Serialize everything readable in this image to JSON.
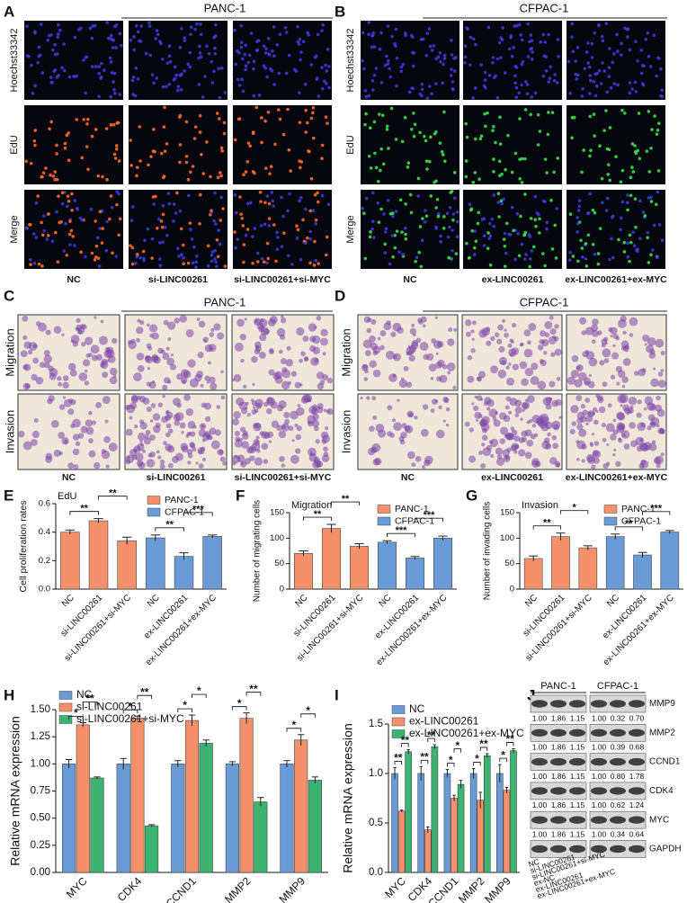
{
  "panels": [
    {
      "label": "A",
      "title": "PANC-1",
      "rows": [
        "Hoechst33342",
        "EdU",
        "Merge"
      ],
      "columns": [
        "NC",
        "si-LINC00261",
        "si-LINC00261+si-MYC"
      ],
      "colors": [
        "#06060e",
        "#3b3bd8",
        "#ff6a2a"
      ]
    },
    {
      "label": "B",
      "title": "CFPAC-1",
      "rows": [
        "Hoechst33342",
        "EdU",
        "Merge"
      ],
      "columns": [
        "NC",
        "ex-LINC00261",
        "ex-LINC00261+ex-MYC"
      ],
      "colors": [
        "#06060e",
        "#3b3bd8",
        "#3ce04a"
      ]
    },
    {
      "label": "C",
      "title": "PANC-1",
      "rows": [
        "Migration",
        "Invasion"
      ],
      "columns": [
        "NC",
        "si-LINC00261",
        "si-LINC00261+si-MYC"
      ],
      "colors": [
        "#efe7d9",
        "#7b44a8"
      ]
    },
    {
      "label": "D",
      "title": "CFPAC-1",
      "rows": [
        "Migration",
        "Invasion"
      ],
      "columns": [
        "NC",
        "ex-LINC00261",
        "ex-LINC00261+ex-MYC"
      ],
      "colors": [
        "#efe7d9",
        "#7b44a8"
      ]
    }
  ],
  "chart_data": [
    {
      "label": "E",
      "type": "bar",
      "title": "EdU",
      "y_label": "Cell proliferation rates",
      "categories": [
        "NC",
        "si-LINC00261",
        "si-LINC00261+si-MYC",
        "NC",
        "ex-LINC00261",
        "ex-LINC00261+ex-MYC"
      ],
      "series": [
        {
          "name": "PANC-1",
          "color": "#f4916c",
          "values": [
            0.4,
            0.48,
            0.34,
            null,
            null,
            null
          ],
          "errors": [
            0.015,
            0.015,
            0.025,
            null,
            null,
            null
          ]
        },
        {
          "name": "CFPAC-1",
          "color": "#6b9bd6",
          "values": [
            null,
            null,
            null,
            0.36,
            0.23,
            0.37
          ],
          "errors": [
            null,
            null,
            null,
            0.02,
            0.025,
            0.01
          ]
        }
      ],
      "ylim": [
        0,
        0.6
      ],
      "yticks": [
        {
          "value": 0,
          "label": "0.0"
        },
        0.2,
        0.4,
        0.6
      ],
      "legend": "upper right",
      "significance": [
        {
          "from": 0,
          "to": 1,
          "label": "**"
        },
        {
          "from": 1,
          "to": 2,
          "label": "**"
        },
        {
          "from": 3,
          "to": 4,
          "label": "**"
        },
        {
          "from": 4,
          "to": 5,
          "label": "***"
        }
      ]
    },
    {
      "label": "F",
      "type": "bar",
      "title": "Migration",
      "y_label": "Number of migrating cells",
      "categories": [
        "NC",
        "si-LINC00261",
        "si-LINC00261+si-MYC",
        "NC",
        "ex-LINC00261",
        "ex-LINC00261+ex-MYC"
      ],
      "series": [
        {
          "name": "PANC-1",
          "color": "#f4916c",
          "values": [
            70,
            119,
            84,
            null,
            null,
            null
          ],
          "errors": [
            5,
            8,
            5,
            null,
            null,
            null
          ]
        },
        {
          "name": "CFPAC-1",
          "color": "#6b9bd6",
          "values": [
            null,
            null,
            null,
            92,
            61,
            100
          ],
          "errors": [
            null,
            null,
            null,
            3,
            3,
            4
          ]
        }
      ],
      "ylim": [
        0,
        150
      ],
      "yticks": [
        0,
        50,
        100,
        150
      ],
      "legend": "upper right",
      "significance": [
        {
          "from": 0,
          "to": 1,
          "label": "**"
        },
        {
          "from": 1,
          "to": 2,
          "label": "**"
        },
        {
          "from": 3,
          "to": 4,
          "label": "***"
        },
        {
          "from": 4,
          "to": 5,
          "label": "***"
        }
      ]
    },
    {
      "label": "G",
      "type": "bar",
      "title": "Invasion",
      "y_label": "Number of invading cells",
      "categories": [
        "NC",
        "si-LINC00261",
        "si-LINC00261+si-MYC",
        "NC",
        "ex-LINC00261",
        "ex-LINC00261+ex-MYC"
      ],
      "series": [
        {
          "name": "PANC-1",
          "color": "#f4916c",
          "values": [
            60,
            103,
            81,
            null,
            null,
            null
          ],
          "errors": [
            5,
            7,
            4,
            null,
            null,
            null
          ]
        },
        {
          "name": "CFPAC-1",
          "color": "#6b9bd6",
          "values": [
            null,
            null,
            null,
            103,
            67,
            112
          ],
          "errors": [
            null,
            null,
            null,
            5,
            5,
            3
          ]
        }
      ],
      "ylim": [
        0,
        150
      ],
      "yticks": [
        0,
        50,
        100,
        150
      ],
      "legend": "upper right",
      "significance": [
        {
          "from": 0,
          "to": 1,
          "label": "**"
        },
        {
          "from": 1,
          "to": 2,
          "label": "*"
        },
        {
          "from": 3,
          "to": 4,
          "label": "**"
        },
        {
          "from": 4,
          "to": 5,
          "label": "***"
        }
      ]
    },
    {
      "label": "H",
      "type": "grouped_bar",
      "y_label": "Relative mRNA expression",
      "categories": [
        "MYC",
        "CDK4",
        "CCND1",
        "MMP2",
        "MMP9"
      ],
      "series": [
        {
          "name": "NC",
          "color": "#6b9bd6",
          "values": [
            1.0,
            1.0,
            1.0,
            1.0,
            1.0
          ],
          "errors": [
            0.04,
            0.05,
            0.03,
            0.02,
            0.03
          ]
        },
        {
          "name": "si-LINC00261",
          "color": "#f4916c",
          "values": [
            1.36,
            1.42,
            1.4,
            1.42,
            1.22
          ],
          "errors": [
            0.02,
            0.02,
            0.05,
            0.05,
            0.05
          ]
        },
        {
          "name": "si-LINC00261+si-MYC",
          "color": "#3cb371",
          "values": [
            0.87,
            0.43,
            1.19,
            0.65,
            0.85
          ],
          "errors": [
            0.01,
            0.01,
            0.03,
            0.04,
            0.03
          ]
        }
      ],
      "ylim": [
        0,
        1.5
      ],
      "yticks": [
        {
          "value": 0,
          "label": "0.00"
        },
        0.25,
        {
          "value": 0.5,
          "label": "0.50"
        },
        0.75,
        {
          "value": 1,
          "label": "1.00"
        },
        1.25,
        {
          "value": 1.5,
          "label": "1.50"
        }
      ],
      "legend": "upper left",
      "significance": [
        {
          "category": 0,
          "from": 0,
          "to": 1,
          "label": "*"
        },
        {
          "category": 0,
          "from": 1,
          "to": 2,
          "label": "**"
        },
        {
          "category": 1,
          "from": 0,
          "to": 1,
          "label": "*"
        },
        {
          "category": 1,
          "from": 1,
          "to": 2,
          "label": "**"
        },
        {
          "category": 2,
          "from": 0,
          "to": 1,
          "label": "*"
        },
        {
          "category": 2,
          "from": 1,
          "to": 2,
          "label": "*"
        },
        {
          "category": 3,
          "from": 0,
          "to": 1,
          "label": "*"
        },
        {
          "category": 3,
          "from": 1,
          "to": 2,
          "label": "**"
        },
        {
          "category": 4,
          "from": 0,
          "to": 1,
          "label": "*"
        },
        {
          "category": 4,
          "from": 1,
          "to": 2,
          "label": "*"
        }
      ]
    },
    {
      "label": "I",
      "type": "grouped_bar",
      "y_label": "Relative mRNA expression",
      "categories": [
        "MYC",
        "CDK4",
        "CCND1",
        "MMP2",
        "MMP9"
      ],
      "series": [
        {
          "name": "NC",
          "color": "#6b9bd6",
          "values": [
            1.0,
            1.0,
            1.0,
            1.0,
            1.0
          ],
          "errors": [
            0.06,
            0.07,
            0.04,
            0.05,
            0.09
          ]
        },
        {
          "name": "ex-LINC00261",
          "color": "#f4916c",
          "values": [
            0.62,
            0.43,
            0.75,
            0.73,
            0.83
          ],
          "errors": [
            0.01,
            0.03,
            0.03,
            0.08,
            0.03
          ]
        },
        {
          "name": "ex-LINC00261+ex-MYC",
          "color": "#3cb371",
          "values": [
            1.22,
            1.27,
            0.89,
            1.18,
            1.23
          ],
          "errors": [
            0.02,
            0.02,
            0.04,
            0.02,
            0.02
          ]
        }
      ],
      "ylim": [
        0,
        1.5
      ],
      "yticks": [
        {
          "value": 0,
          "label": "0.0"
        },
        0.5,
        {
          "value": 1,
          "label": "1.0"
        },
        1.5
      ],
      "legend": "upper left",
      "significance": [
        {
          "category": 0,
          "from": 0,
          "to": 1,
          "label": "**"
        },
        {
          "category": 0,
          "from": 1,
          "to": 2,
          "label": "**"
        },
        {
          "category": 1,
          "from": 0,
          "to": 1,
          "label": "**"
        },
        {
          "category": 1,
          "from": 1,
          "to": 2,
          "label": "**"
        },
        {
          "category": 2,
          "from": 0,
          "to": 1,
          "label": "*"
        },
        {
          "category": 2,
          "from": 1,
          "to": 2,
          "label": "*"
        },
        {
          "category": 3,
          "from": 0,
          "to": 1,
          "label": "*"
        },
        {
          "category": 3,
          "from": 1,
          "to": 2,
          "label": "**"
        },
        {
          "category": 4,
          "from": 0,
          "to": 1,
          "label": "*"
        },
        {
          "category": 4,
          "from": 1,
          "to": 2,
          "label": "**"
        }
      ]
    }
  ],
  "blot": {
    "label": "J",
    "groups": [
      "PANC-1",
      "CFPAC-1"
    ],
    "lanes": [
      "NC",
      "si-LINC00261",
      "si-LINC00261+si-MYC",
      "ex-NC",
      "ex-LINC00261",
      "ex-LINC00261+ex-MYC"
    ],
    "proteins": [
      {
        "name": "MMP9",
        "values": [
          [
            "1.00",
            "1.86",
            "1.15"
          ],
          [
            "1.00",
            "0.32",
            "0.70"
          ]
        ]
      },
      {
        "name": "MMP2",
        "values": [
          [
            "1.00",
            "1.86",
            "1.15"
          ],
          [
            "1.00",
            "0.39",
            "0.68"
          ]
        ]
      },
      {
        "name": "CCND1",
        "values": [
          [
            "1.00",
            "1.86",
            "1.15"
          ],
          [
            "1.00",
            "0.80",
            "1.78"
          ]
        ]
      },
      {
        "name": "CDK4",
        "values": [
          [
            "1.00",
            "1.86",
            "1.15"
          ],
          [
            "1.00",
            "0.62",
            "1.24"
          ]
        ]
      },
      {
        "name": "MYC",
        "values": [
          [
            "1.00",
            "1.86",
            "1.15"
          ],
          [
            "1.00",
            "0.34",
            "0.64"
          ]
        ]
      },
      {
        "name": "GAPDH"
      }
    ]
  }
}
